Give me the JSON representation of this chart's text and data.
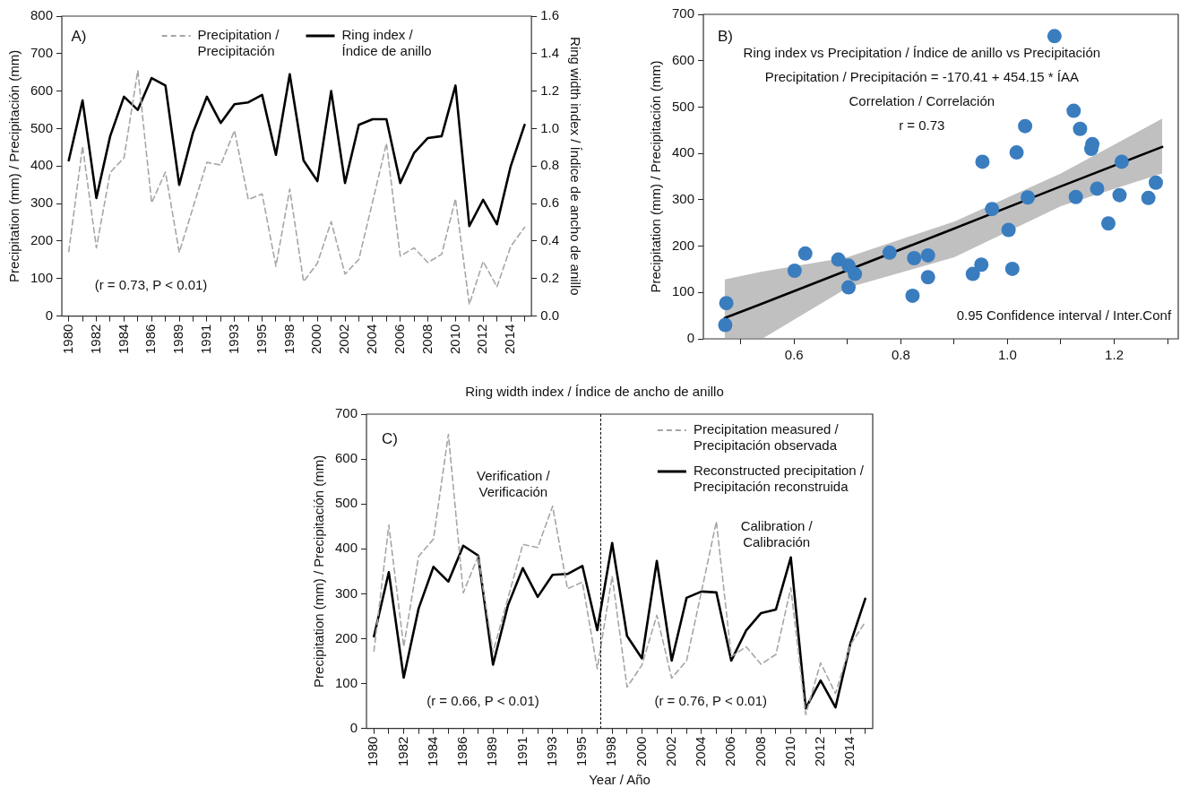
{
  "chart_data": [
    {
      "type": "line",
      "annotations": [
        "A)",
        "(r = 0.73, P < 0.01)"
      ],
      "ylabel": "Precipitation (mm) / Precipitación (mm)",
      "y2label": "Ring width index / Índice de ancho de anillo",
      "categories": [
        "1980",
        null,
        "1982",
        null,
        "1984",
        null,
        "1986",
        null,
        "1989",
        null,
        "1991",
        null,
        "1993",
        null,
        "1995",
        null,
        "1998",
        null,
        "2000",
        null,
        "2002",
        null,
        "2004",
        null,
        "2006",
        null,
        "2008",
        null,
        "2010",
        null,
        "2012",
        null,
        "2014",
        null
      ],
      "ylim": [
        0,
        800
      ],
      "yticks": [
        0,
        100,
        200,
        300,
        400,
        500,
        600,
        700,
        800
      ],
      "y2lim": [
        0,
        1.6
      ],
      "y2ticks": [
        {
          "value": 0,
          "label": "0.0"
        },
        0.2,
        0.4,
        0.6,
        0.8,
        {
          "value": 1,
          "label": "1.0"
        },
        1.2,
        1.4,
        1.6
      ],
      "grid": false,
      "legend": "top",
      "marker": "none",
      "series": [
        {
          "name": "Precipitation / Precipitación",
          "color": "#a6a6a6",
          "line_style": "dashed",
          "values": [
            172,
            453,
            182,
            383,
            422,
            655,
            302,
            384,
            170,
            290,
            410,
            403,
            495,
            311,
            326,
            133,
            339,
            92,
            141,
            252,
            112,
            151,
            305,
            461,
            160,
            182,
            143,
            165,
            313,
            31,
            146,
            78,
            186,
            237
          ]
        },
        {
          "name": "Ring index / Índice de anillo",
          "color": "#000000",
          "line_style": "solid",
          "axis": "y2",
          "values": [
            0.83,
            1.15,
            0.63,
            0.96,
            1.17,
            1.1,
            1.27,
            1.23,
            0.7,
            0.98,
            1.17,
            1.03,
            1.13,
            1.14,
            1.18,
            0.86,
            1.29,
            0.83,
            0.72,
            1.2,
            0.71,
            1.02,
            1.05,
            1.05,
            0.71,
            0.87,
            0.95,
            0.96,
            1.23,
            0.48,
            0.62,
            0.49,
            0.8,
            1.02
          ]
        }
      ]
    },
    {
      "type": "scatter",
      "annotations": [
        "B)",
        "Ring index vs Precipitation / Índice de anillo vs Precipitación",
        "Precipitation / Precipitación = -170.41 + 454.15 * ÍAA",
        "Correlation / Correlación",
        "r = 0.73",
        "0.95 Confidence interval / Inter.Conf"
      ],
      "xlabel": "Ring width index / Índice de ancho de anillo",
      "ylabel": "Precipitation (mm) / Precipitación (mm)",
      "xlim": [
        0.43,
        1.32
      ],
      "xticks": [
        {
          "value": 0.5,
          "label": null
        },
        0.6,
        {
          "value": 0.7,
          "label": null
        },
        0.8,
        {
          "value": 0.9,
          "label": null
        },
        {
          "value": 1,
          "label": "1.0"
        },
        {
          "value": 1.1,
          "label": null
        },
        1.2,
        {
          "value": 1.3,
          "label": null
        }
      ],
      "ylim": [
        0,
        700
      ],
      "yticks": [
        0,
        100,
        200,
        300,
        400,
        500,
        600,
        700
      ],
      "grid": false,
      "marker": "circle",
      "series": [
        {
          "color": "#3a7dbf",
          "x": [
            0.473,
            0.471,
            0.601,
            0.621,
            0.683,
            0.702,
            0.714,
            0.702,
            0.779,
            0.825,
            0.822,
            0.851,
            0.851,
            0.935,
            0.951,
            0.953,
            0.971,
            1.002,
            1.009,
            1.017,
            1.033,
            1.038,
            1.088,
            1.124,
            1.128,
            1.136,
            1.159,
            1.157,
            1.168,
            1.189,
            1.21,
            1.214,
            1.264,
            1.278
          ],
          "values": [
            77,
            30,
            147,
            184,
            171,
            158,
            140,
            111,
            186,
            174,
            93,
            180,
            133,
            140,
            160,
            382,
            280,
            235,
            151,
            402,
            459,
            305,
            653,
            492,
            306,
            453,
            420,
            410,
            324,
            249,
            310,
            382,
            304,
            337
          ]
        },
        {
          "type": "line",
          "color": "#000000",
          "marker": "none",
          "x": [
            0.47,
            0.54,
            0.7,
            0.9,
            1.1,
            1.29
          ],
          "values": [
            45,
            76,
            148,
            238,
            329,
            414
          ],
          "lower": [
            0,
            0,
            110,
            176,
            286,
            357
          ],
          "upper": [
            128,
            145,
            176,
            253,
            357,
            475
          ]
        }
      ]
    },
    {
      "type": "line",
      "annotations": [
        "C)",
        "Verification / Verificación",
        "Calibration / Calibración",
        "(r = 0.66, P < 0.01)",
        "(r = 0.76, P < 0.01)"
      ],
      "xlabel": "Year / Año",
      "ylabel": "Precipitation (mm) / Precipitación (mm)",
      "categories": [
        "1980",
        null,
        "1982",
        null,
        "1984",
        null,
        "1986",
        null,
        "1989",
        null,
        "1991",
        null,
        "1993",
        null,
        "1995",
        null,
        "1998",
        null,
        "2000",
        null,
        "2002",
        null,
        "2004",
        null,
        "2006",
        null,
        "2008",
        null,
        "2010",
        null,
        "2012",
        null,
        "2014",
        null
      ],
      "ylim": [
        0,
        700
      ],
      "yticks": [
        0,
        100,
        200,
        300,
        400,
        500,
        600,
        700
      ],
      "grid": false,
      "legend": "top right",
      "marker": "none",
      "series": [
        {
          "name": "Precipitation measured / Precipitación observada",
          "color": "#a6a6a6",
          "line_style": "dashed",
          "values": [
            172,
            453,
            182,
            383,
            422,
            655,
            302,
            384,
            170,
            290,
            410,
            403,
            495,
            311,
            326,
            133,
            339,
            92,
            141,
            252,
            112,
            151,
            305,
            461,
            160,
            182,
            143,
            165,
            313,
            31,
            146,
            78,
            186,
            237
          ]
        },
        {
          "name": "Reconstructed precipitation / Precipitación reconstruida",
          "color": "#000000",
          "line_style": "solid",
          "values": [
            205,
            348,
            113,
            267,
            360,
            327,
            407,
            385,
            142,
            274,
            357,
            293,
            342,
            344,
            362,
            219,
            413,
            206,
            156,
            373,
            151,
            291,
            305,
            303,
            151,
            218,
            257,
            265,
            381,
            45,
            107,
            47,
            189,
            289
          ]
        }
      ]
    }
  ]
}
